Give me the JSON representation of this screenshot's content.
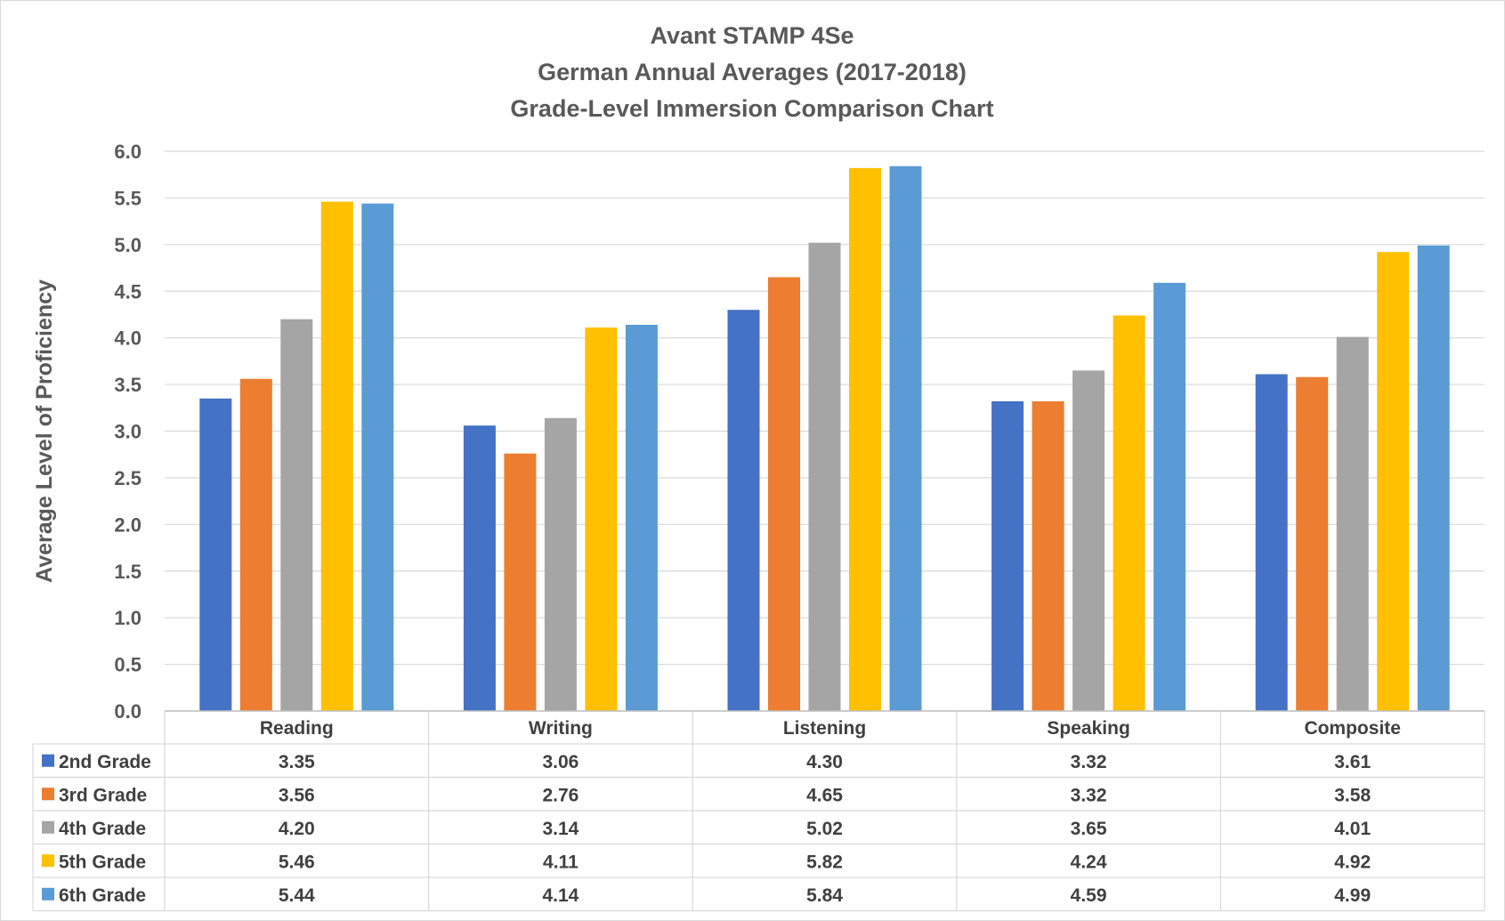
{
  "chart_data": {
    "type": "bar",
    "title_lines": [
      "Avant STAMP 4Se",
      "German Annual Averages (2017-2018)",
      "Grade-Level Immersion Comparison Chart"
    ],
    "ylabel": "Average Level of Proficiency",
    "xlabel": "",
    "ylim": [
      0,
      6
    ],
    "yticks": [
      "0.0",
      "0.5",
      "1.0",
      "1.5",
      "2.0",
      "2.5",
      "3.0",
      "3.5",
      "4.0",
      "4.5",
      "5.0",
      "5.5",
      "6.0"
    ],
    "grid": true,
    "legend_placement": "data-table",
    "categories": [
      "Reading",
      "Writing",
      "Listening",
      "Speaking",
      "Composite"
    ],
    "series": [
      {
        "name": "2nd Grade",
        "color": "#4472C4",
        "values": [
          3.35,
          3.06,
          4.3,
          3.32,
          3.61
        ],
        "labels": [
          "3.35",
          "3.06",
          "4.30",
          "3.32",
          "3.61"
        ]
      },
      {
        "name": "3rd Grade",
        "color": "#ED7D31",
        "values": [
          3.56,
          2.76,
          4.65,
          3.32,
          3.58
        ],
        "labels": [
          "3.56",
          "2.76",
          "4.65",
          "3.32",
          "3.58"
        ]
      },
      {
        "name": "4th Grade",
        "color": "#A5A5A5",
        "values": [
          4.2,
          3.14,
          5.02,
          3.65,
          4.01
        ],
        "labels": [
          "4.20",
          "3.14",
          "5.02",
          "3.65",
          "4.01"
        ]
      },
      {
        "name": "5th Grade",
        "color": "#FFC000",
        "values": [
          5.46,
          4.11,
          5.82,
          4.24,
          4.92
        ],
        "labels": [
          "5.46",
          "4.11",
          "5.82",
          "4.24",
          "4.92"
        ]
      },
      {
        "name": "6th Grade",
        "color": "#5B9BD5",
        "values": [
          5.44,
          4.14,
          5.84,
          4.59,
          4.99
        ],
        "labels": [
          "5.44",
          "4.14",
          "5.84",
          "4.59",
          "4.99"
        ]
      }
    ]
  }
}
